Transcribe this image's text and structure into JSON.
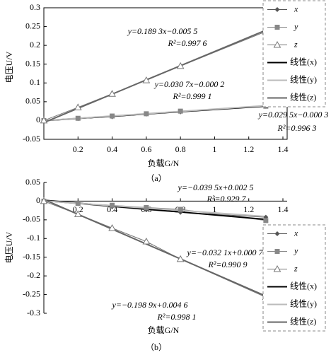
{
  "chart_data": [
    {
      "type": "line",
      "caption": "（a）",
      "x_label": "负载G/N",
      "y_label": "电压U/V",
      "x": [
        0,
        0.2,
        0.4,
        0.6,
        0.8,
        1.3
      ],
      "xlim": [
        0,
        1.4
      ],
      "xticks": [
        0.2,
        0.4,
        0.6,
        0.8,
        1.0,
        1.2,
        1.4
      ],
      "ylim": [
        -0.05,
        0.3
      ],
      "yticks": [
        -0.05,
        0,
        0.05,
        0.1,
        0.15,
        0.2,
        0.25,
        0.3
      ],
      "xaxis_position": "bottom",
      "grid": false,
      "legend": "upper right",
      "series": [
        {
          "name": "x",
          "color": "#555555",
          "marker": "diamond",
          "values": [
            0,
            0.005,
            0.01,
            0.017,
            0.023,
            0.038
          ]
        },
        {
          "name": "y",
          "color": "#888888",
          "marker": "square",
          "values": [
            0,
            0.006,
            0.012,
            0.018,
            0.025,
            0.038
          ]
        },
        {
          "name": "z",
          "color": "#777777",
          "marker": "triangle",
          "values": [
            0,
            0.035,
            0.071,
            0.107,
            0.145,
            0.237
          ]
        },
        {
          "name": "线性(x)",
          "color": "#000000",
          "values": [
            -0.0003,
            0.0056,
            0.0115,
            0.0174,
            0.0233,
            0.0381
          ]
        },
        {
          "name": "线性(y)",
          "color": "#bbbbbb",
          "values": [
            -0.0002,
            0.0059,
            0.0121,
            0.0182,
            0.0244,
            0.0397
          ]
        },
        {
          "name": "线性(z)",
          "color": "#666666",
          "values": [
            -0.0055,
            0.0324,
            0.0702,
            0.1081,
            0.1459,
            0.2405
          ]
        }
      ],
      "annotations": [
        "y=0.189 3x−0.005 5",
        "R²=0.997 6",
        "y=0.030 7x−0.000 2",
        "R²=0.999 1",
        "y=0.029 5x−0.000 3",
        "R²=0.996 3"
      ]
    },
    {
      "type": "line",
      "caption": "（b）",
      "x_label": "负载G/N",
      "y_label": "电压U/V",
      "x": [
        0,
        0.2,
        0.4,
        0.6,
        0.8,
        1.3
      ],
      "xlim": [
        0,
        1.4
      ],
      "xticks": [
        0.2,
        0.4,
        0.6,
        0.8,
        1.0,
        1.2,
        1.4
      ],
      "ylim": [
        -0.3,
        0.05
      ],
      "yticks": [
        -0.3,
        -0.25,
        -0.2,
        -0.15,
        -0.1,
        -0.05,
        0,
        0.05
      ],
      "xaxis_position": "zero",
      "grid": false,
      "legend": "lower right",
      "series": [
        {
          "name": "x",
          "color": "#555555",
          "marker": "diamond",
          "values": [
            0,
            -0.007,
            -0.015,
            -0.023,
            -0.03,
            -0.043
          ]
        },
        {
          "name": "y",
          "color": "#888888",
          "marker": "square",
          "values": [
            0,
            -0.006,
            -0.011,
            -0.017,
            -0.022,
            -0.052
          ]
        },
        {
          "name": "z",
          "color": "#777777",
          "marker": "triangle",
          "values": [
            0,
            -0.035,
            -0.072,
            -0.108,
            -0.155,
            -0.257
          ]
        },
        {
          "name": "线性(x)",
          "color": "#000000",
          "values": [
            0.0025,
            -0.0054,
            -0.0133,
            -0.0212,
            -0.0291,
            -0.0489
          ]
        },
        {
          "name": "线性(y)",
          "color": "#bbbbbb",
          "values": [
            0.0007,
            -0.0057,
            -0.0121,
            -0.0186,
            -0.025,
            -0.041
          ]
        },
        {
          "name": "线性(z)",
          "color": "#666666",
          "values": [
            0.0046,
            -0.0352,
            -0.075,
            -0.1147,
            -0.1545,
            -0.254
          ]
        }
      ],
      "annotations": [
        "y=−0.039 5x+0.002 5",
        "R²=0.929 7",
        "y=−0.032 1x+0.000 7",
        "R²=0.990 9",
        "y=−0.198 9x+0.004 6",
        "R²=0.998 1"
      ]
    }
  ]
}
